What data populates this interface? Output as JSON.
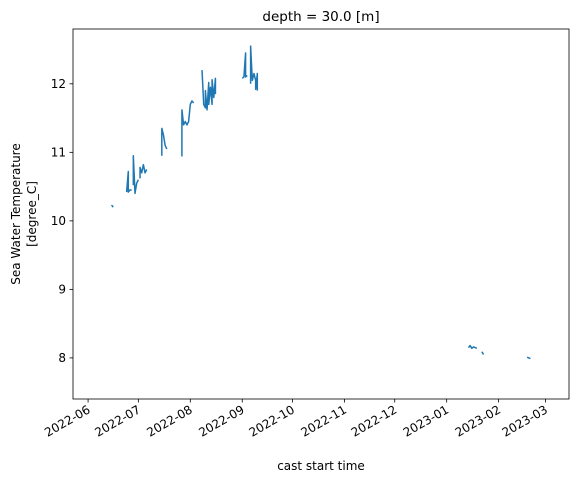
{
  "chart_data": {
    "type": "line",
    "title": "depth = 30.0 [m]",
    "xlabel": "cast start time",
    "ylabel_line1": "Sea Water Temperature",
    "ylabel_line2": "[degree_C]",
    "x_is_date": true,
    "xlim": [
      "2022-05-23",
      "2023-03-15"
    ],
    "ylim": [
      7.4,
      12.8
    ],
    "x_ticks": [
      "2022-06-01",
      "2022-07-01",
      "2022-08-01",
      "2022-09-01",
      "2022-10-01",
      "2022-11-01",
      "2022-12-01",
      "2023-01-01",
      "2023-02-01",
      "2023-03-01"
    ],
    "x_tick_labels": [
      "2022-06",
      "2022-07",
      "2022-08",
      "2022-09",
      "2022-10",
      "2022-11",
      "2022-12",
      "2023-01",
      "2023-02",
      "2023-03"
    ],
    "y_ticks": [
      8,
      9,
      10,
      11,
      12
    ],
    "grid": false,
    "line_color": "#1f77b4",
    "series": [
      {
        "segments": [
          [
            [
              "2022-06-15",
              10.23
            ],
            [
              "2022-06-16",
              10.2
            ]
          ],
          [
            [
              "2022-06-24",
              10.42
            ],
            [
              "2022-06-25",
              10.72
            ],
            [
              "2022-06-25",
              10.42
            ],
            [
              "2022-06-26",
              10.45
            ],
            [
              "2022-06-27",
              10.45
            ]
          ],
          [
            [
              "2022-06-28",
              10.52
            ],
            [
              "2022-06-28",
              10.95
            ],
            [
              "2022-06-29",
              10.4
            ],
            [
              "2022-06-30",
              10.55
            ],
            [
              "2022-07-01",
              10.6
            ]
          ],
          [
            [
              "2022-07-02",
              10.62
            ],
            [
              "2022-07-02",
              10.78
            ],
            [
              "2022-07-03",
              10.7
            ],
            [
              "2022-07-04",
              10.82
            ],
            [
              "2022-07-05",
              10.7
            ],
            [
              "2022-07-06",
              10.75
            ]
          ],
          [
            [
              "2022-07-15",
              10.95
            ],
            [
              "2022-07-15",
              11.35
            ],
            [
              "2022-07-16",
              11.25
            ],
            [
              "2022-07-17",
              11.1
            ],
            [
              "2022-07-18",
              11.05
            ]
          ],
          [
            [
              "2022-07-27",
              10.94
            ],
            [
              "2022-07-27",
              11.62
            ],
            [
              "2022-07-28",
              11.4
            ],
            [
              "2022-07-29",
              11.45
            ],
            [
              "2022-07-30",
              11.4
            ],
            [
              "2022-07-31",
              11.45
            ],
            [
              "2022-08-01",
              11.7
            ],
            [
              "2022-08-02",
              11.75
            ],
            [
              "2022-08-03",
              11.72
            ]
          ],
          [
            [
              "2022-08-08",
              12.2
            ],
            [
              "2022-08-09",
              11.7
            ],
            [
              "2022-08-10",
              11.65
            ],
            [
              "2022-08-10",
              11.9
            ],
            [
              "2022-08-11",
              11.62
            ],
            [
              "2022-08-12",
              12.02
            ],
            [
              "2022-08-12",
              11.7
            ],
            [
              "2022-08-13",
              11.95
            ],
            [
              "2022-08-14",
              11.7
            ],
            [
              "2022-08-14",
              12.06
            ],
            [
              "2022-08-15",
              11.8
            ],
            [
              "2022-08-16",
              12.08
            ],
            [
              "2022-08-16",
              11.85
            ]
          ],
          [
            [
              "2022-09-01",
              12.08
            ],
            [
              "2022-09-02",
              12.1
            ],
            [
              "2022-09-03",
              12.45
            ],
            [
              "2022-09-03",
              12.1
            ],
            [
              "2022-09-04",
              12.12
            ]
          ],
          [
            [
              "2022-09-06",
              12.0
            ],
            [
              "2022-09-06",
              12.55
            ],
            [
              "2022-09-07",
              12.05
            ],
            [
              "2022-09-08",
              12.15
            ],
            [
              "2022-09-09",
              12.05
            ],
            [
              "2022-09-09",
              11.92
            ],
            [
              "2022-09-10",
              12.15
            ],
            [
              "2022-09-10",
              11.9
            ]
          ],
          [
            [
              "2023-01-14",
              8.15
            ],
            [
              "2023-01-15",
              8.18
            ],
            [
              "2023-01-16",
              8.14
            ],
            [
              "2023-01-17",
              8.16
            ],
            [
              "2023-01-18",
              8.15
            ],
            [
              "2023-01-19",
              8.14
            ]
          ],
          [
            [
              "2023-01-22",
              8.09
            ],
            [
              "2023-01-23",
              8.05
            ]
          ],
          [
            [
              "2023-02-18",
              8.01
            ],
            [
              "2023-02-19",
              8.0
            ],
            [
              "2023-02-20",
              7.99
            ]
          ]
        ]
      }
    ]
  }
}
